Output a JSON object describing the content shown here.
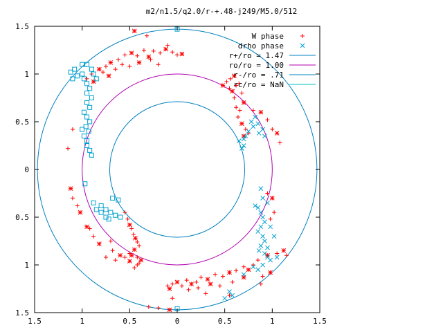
{
  "chart_data": {
    "type": "scatter",
    "title": "m2/n1.5/q2.0/r-+.48-j249/M5.0/512",
    "xlabel": "",
    "ylabel": "",
    "xlim": [
      -1.5,
      1.5
    ],
    "ylim": [
      -1.5,
      1.5
    ],
    "x_tick_values": [
      -1.5,
      -1,
      -0.5,
      0,
      0.5,
      1,
      1.5
    ],
    "x_tick_labels": [
      "1.5",
      "1",
      "0.5",
      "0",
      "0.5",
      "1",
      "1.5"
    ],
    "y_tick_values": [
      1.5,
      1,
      0.5,
      0,
      -0.5,
      -1,
      -1.5
    ],
    "y_tick_labels": [
      "1.5",
      "1",
      "0.5",
      "0",
      "0.5",
      "1",
      "1.5"
    ],
    "grid": false,
    "legend_position": "top-right",
    "legend": [
      {
        "label": "W phase",
        "kind": "scatter",
        "marker": "plus",
        "color": "#ff0000"
      },
      {
        "label": "drho phase",
        "kind": "scatter",
        "marker": "x",
        "color": "#00a0d0"
      },
      {
        "label": "r+/ro = 1.47",
        "kind": "circle",
        "radius": 1.47,
        "color": "#0080c0"
      },
      {
        "label": "ro/ro = 1.00",
        "kind": "circle",
        "radius": 1.0,
        "color": "#b000b0"
      },
      {
        "label": "r-/ro = .71",
        "kind": "circle",
        "radius": 0.71,
        "color": "#0080c0"
      },
      {
        "label": "rc/ro = NaN",
        "kind": "circle",
        "radius": null,
        "color": "#00c0c0"
      }
    ],
    "series": [
      {
        "name": "W phase",
        "color": "#ff0000",
        "marker_note": "plus / asterisk",
        "points": [
          [
            -0.55,
            1.2
          ],
          [
            -0.48,
            1.22
          ],
          [
            -0.42,
            1.19
          ],
          [
            -0.35,
            1.25
          ],
          [
            -0.3,
            1.18
          ],
          [
            -0.25,
            1.24
          ],
          [
            -0.18,
            1.22
          ],
          [
            -0.12,
            1.26
          ],
          [
            -0.05,
            1.23
          ],
          [
            0.0,
            1.2
          ],
          [
            0.05,
            1.21
          ],
          [
            -0.58,
            1.1
          ],
          [
            -0.62,
            1.15
          ],
          [
            -0.7,
            1.12
          ],
          [
            -0.75,
            1.08
          ],
          [
            -0.78,
            1.02
          ],
          [
            -0.72,
            0.98
          ],
          [
            -0.65,
            1.05
          ],
          [
            -0.5,
            1.08
          ],
          [
            -0.4,
            1.12
          ],
          [
            -0.28,
            1.15
          ],
          [
            -0.2,
            1.1
          ],
          [
            -0.45,
            1.45
          ],
          [
            -0.32,
            1.4
          ],
          [
            -0.1,
            1.3
          ],
          [
            -0.82,
            1.05
          ],
          [
            -0.9,
            1.0
          ],
          [
            -0.95,
            0.95
          ],
          [
            -0.88,
            0.92
          ],
          [
            -1.15,
            0.22
          ],
          [
            -1.1,
            0.42
          ],
          [
            -1.12,
            -0.2
          ],
          [
            -1.1,
            -0.3
          ],
          [
            -1.05,
            -0.38
          ],
          [
            -1.02,
            -0.45
          ],
          [
            -0.55,
            -0.45
          ],
          [
            -0.52,
            -0.52
          ],
          [
            -0.5,
            -0.58
          ],
          [
            -0.48,
            -0.62
          ],
          [
            -0.46,
            -0.68
          ],
          [
            -0.44,
            -0.72
          ],
          [
            -0.42,
            -0.76
          ],
          [
            -0.4,
            -0.8
          ],
          [
            -0.45,
            -0.84
          ],
          [
            -0.5,
            -0.88
          ],
          [
            -0.55,
            -0.92
          ],
          [
            -0.5,
            -0.96
          ],
          [
            -0.42,
            -1.0
          ],
          [
            -0.45,
            -1.03
          ],
          [
            -0.6,
            -0.9
          ],
          [
            -0.68,
            -0.85
          ],
          [
            -0.75,
            -0.92
          ],
          [
            -0.82,
            -0.78
          ],
          [
            -0.88,
            -0.7
          ],
          [
            -0.92,
            -0.62
          ],
          [
            -0.95,
            -0.6
          ],
          [
            -0.7,
            -0.75
          ],
          [
            -0.65,
            -0.95
          ],
          [
            -0.38,
            -0.95
          ],
          [
            -0.42,
            -0.92
          ],
          [
            -0.4,
            -0.98
          ],
          [
            -0.48,
            -0.9
          ],
          [
            -0.2,
            -1.45
          ],
          [
            -0.3,
            -1.44
          ],
          [
            -0.08,
            -1.47
          ],
          [
            -0.05,
            -1.35
          ],
          [
            0.6,
            0.75
          ],
          [
            0.58,
            0.82
          ],
          [
            0.62,
            0.88
          ],
          [
            0.55,
            0.85
          ],
          [
            0.48,
            0.88
          ],
          [
            0.52,
            0.92
          ],
          [
            0.56,
            0.95
          ],
          [
            0.6,
            0.98
          ],
          [
            0.65,
            0.9
          ],
          [
            0.68,
            0.8
          ],
          [
            0.7,
            0.7
          ],
          [
            0.66,
            0.62
          ],
          [
            0.64,
            0.55
          ],
          [
            0.68,
            0.48
          ],
          [
            0.72,
            0.42
          ],
          [
            0.75,
            0.38
          ],
          [
            0.7,
            0.35
          ],
          [
            0.62,
            0.65
          ],
          [
            0.8,
            0.62
          ],
          [
            0.88,
            0.6
          ],
          [
            0.95,
            0.52
          ],
          [
            1.0,
            0.42
          ],
          [
            1.05,
            0.38
          ],
          [
            1.08,
            0.28
          ],
          [
            0.95,
            -0.25
          ],
          [
            1.0,
            -0.3
          ],
          [
            1.02,
            -0.45
          ],
          [
            0.98,
            -0.52
          ],
          [
            0.95,
            -0.9
          ],
          [
            0.85,
            -0.95
          ],
          [
            0.8,
            -1.0
          ],
          [
            0.75,
            -1.05
          ],
          [
            0.7,
            -1.02
          ],
          [
            0.62,
            -1.06
          ],
          [
            0.55,
            -1.08
          ],
          [
            0.48,
            -1.12
          ],
          [
            0.4,
            -1.1
          ],
          [
            0.32,
            -1.15
          ],
          [
            0.25,
            -1.13
          ],
          [
            0.2,
            -1.18
          ],
          [
            0.15,
            -1.2
          ],
          [
            0.1,
            -1.16
          ],
          [
            0.05,
            -1.22
          ],
          [
            0.0,
            -1.18
          ],
          [
            -0.05,
            -1.2
          ],
          [
            -0.1,
            -1.22
          ],
          [
            -0.08,
            -1.25
          ],
          [
            0.12,
            -1.26
          ],
          [
            0.22,
            -1.24
          ],
          [
            0.35,
            -1.2
          ],
          [
            0.45,
            -1.22
          ],
          [
            0.58,
            -1.18
          ],
          [
            0.7,
            -1.13
          ],
          [
            0.3,
            -1.3
          ],
          [
            0.55,
            -1.32
          ],
          [
            1.12,
            -0.85
          ],
          [
            1.15,
            -0.9
          ],
          [
            1.05,
            -0.88
          ],
          [
            0.98,
            -1.08
          ],
          [
            0.9,
            -1.12
          ],
          [
            0.88,
            -1.2
          ]
        ]
      },
      {
        "name": "drho phase",
        "color": "#00a0d0",
        "marker_note": "x / box",
        "points": [
          [
            -1.1,
            0.95
          ],
          [
            -1.05,
            0.98
          ],
          [
            -1.0,
            1.0
          ],
          [
            -0.98,
            0.95
          ],
          [
            -0.95,
            0.9
          ],
          [
            -0.92,
            0.85
          ],
          [
            -0.95,
            0.8
          ],
          [
            -0.9,
            0.75
          ],
          [
            -0.95,
            0.7
          ],
          [
            -0.92,
            0.65
          ],
          [
            -0.98,
            0.6
          ],
          [
            -0.95,
            0.55
          ],
          [
            -0.92,
            0.5
          ],
          [
            -0.96,
            0.45
          ],
          [
            -0.93,
            0.4
          ],
          [
            -0.98,
            0.35
          ],
          [
            -0.95,
            0.3
          ],
          [
            -1.0,
            0.42
          ],
          [
            -1.08,
            1.05
          ],
          [
            -0.95,
            1.1
          ],
          [
            -0.9,
            1.05
          ],
          [
            -0.88,
            1.0
          ],
          [
            -0.85,
            0.95
          ],
          [
            -1.12,
            1.02
          ],
          [
            -1.0,
            1.1
          ],
          [
            -0.92,
            0.2
          ],
          [
            -0.95,
            0.25
          ],
          [
            -0.9,
            0.15
          ],
          [
            -0.97,
            -0.15
          ],
          [
            -0.88,
            -0.35
          ],
          [
            -0.8,
            -0.38
          ],
          [
            -0.75,
            -0.42
          ],
          [
            -0.7,
            -0.45
          ],
          [
            -0.65,
            -0.48
          ],
          [
            -0.6,
            -0.5
          ],
          [
            -0.72,
            -0.52
          ],
          [
            -0.68,
            -0.3
          ],
          [
            -0.62,
            -0.32
          ],
          [
            -0.8,
            -0.45
          ],
          [
            -0.85,
            -0.42
          ],
          [
            -0.75,
            -0.5
          ],
          [
            0.0,
            1.47
          ],
          [
            0.65,
            0.3
          ],
          [
            0.7,
            0.32
          ],
          [
            0.72,
            0.35
          ],
          [
            0.75,
            0.4
          ],
          [
            0.8,
            0.45
          ],
          [
            0.78,
            0.5
          ],
          [
            0.82,
            0.55
          ],
          [
            0.85,
            0.48
          ],
          [
            0.9,
            0.42
          ],
          [
            0.86,
            0.38
          ],
          [
            0.92,
            0.35
          ],
          [
            0.7,
            0.25
          ],
          [
            0.68,
            0.22
          ],
          [
            0.85,
            -0.4
          ],
          [
            0.88,
            -0.45
          ],
          [
            0.9,
            -0.5
          ],
          [
            0.92,
            -0.55
          ],
          [
            0.88,
            -0.6
          ],
          [
            0.85,
            -0.65
          ],
          [
            0.9,
            -0.7
          ],
          [
            0.92,
            -0.75
          ],
          [
            0.88,
            -0.8
          ],
          [
            0.86,
            -0.85
          ],
          [
            0.92,
            -0.88
          ],
          [
            0.95,
            -0.92
          ],
          [
            0.98,
            -0.95
          ],
          [
            0.9,
            -1.0
          ],
          [
            0.85,
            -1.05
          ],
          [
            0.95,
            -0.82
          ],
          [
            0.8,
            -1.02
          ],
          [
            0.7,
            -1.1
          ],
          [
            1.05,
            -0.92
          ],
          [
            1.02,
            -0.7
          ],
          [
            0.98,
            -0.6
          ],
          [
            0.95,
            -0.35
          ],
          [
            0.9,
            -0.3
          ],
          [
            0.82,
            -0.38
          ],
          [
            0.88,
            -0.2
          ],
          [
            0.55,
            -1.28
          ],
          [
            0.58,
            -1.32
          ],
          [
            0.5,
            -1.35
          ],
          [
            0.0,
            -1.46
          ]
        ]
      }
    ]
  }
}
